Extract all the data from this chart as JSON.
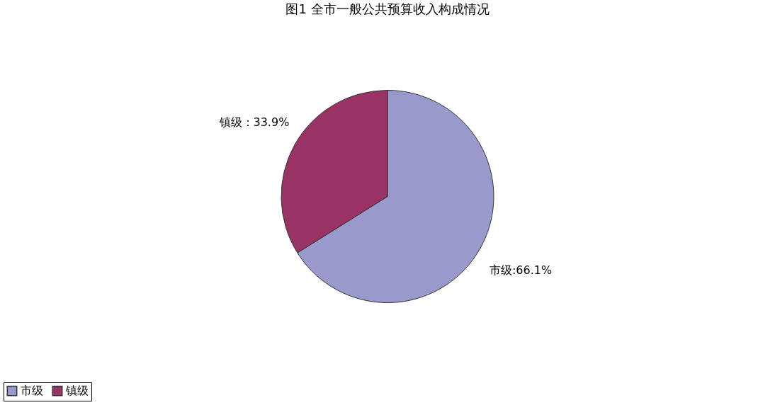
{
  "chart_data": {
    "type": "pie",
    "title": "图1 全市一般公共预算收入构成情况",
    "categories": [
      "市级",
      "镇级"
    ],
    "values": [
      66.1,
      33.9
    ],
    "colors": [
      "#9999cc",
      "#993366"
    ],
    "value_labels": [
      "市级:66.1%",
      "镇级：33.9%"
    ],
    "legend": "bottom"
  }
}
